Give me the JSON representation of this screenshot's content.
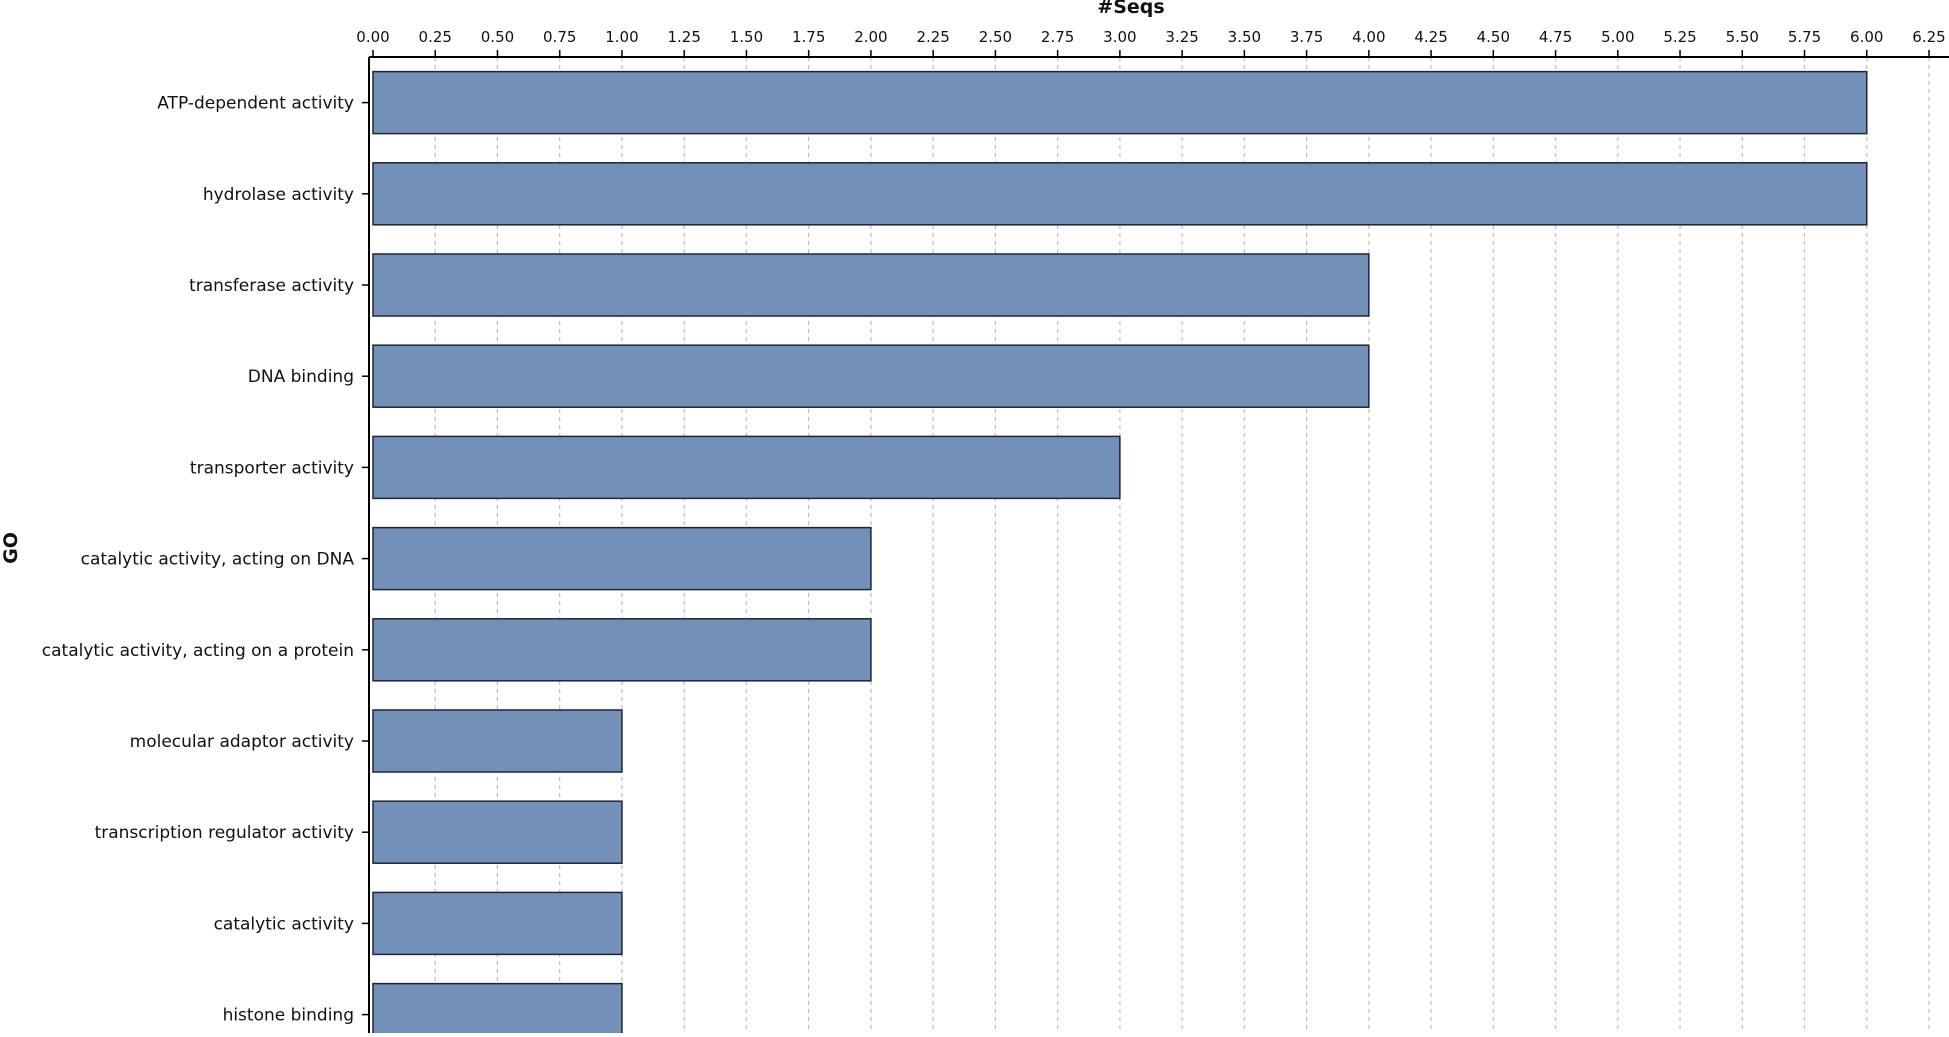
{
  "chart_data": {
    "type": "bar",
    "orientation": "horizontal",
    "xlabel": "#Seqs",
    "ylabel": "GO",
    "xlim": [
      0,
      6.25
    ],
    "x_ticks": [
      "0.00",
      "0.25",
      "0.50",
      "0.75",
      "1.00",
      "1.25",
      "1.50",
      "1.75",
      "2.00",
      "2.25",
      "2.50",
      "2.75",
      "3.00",
      "3.25",
      "3.50",
      "3.75",
      "4.00",
      "4.25",
      "4.50",
      "4.75",
      "5.00",
      "5.25",
      "5.50",
      "5.75",
      "6.00",
      "6.25"
    ],
    "categories": [
      "ATP-dependent activity",
      "hydrolase activity",
      "transferase activity",
      "DNA binding",
      "transporter activity",
      "catalytic activity, acting on DNA",
      "catalytic activity, acting on a protein",
      "molecular adaptor activity",
      "transcription regulator activity",
      "catalytic activity",
      "histone binding"
    ],
    "values": [
      6,
      6,
      4,
      4,
      3,
      2,
      2,
      1,
      1,
      1,
      1
    ],
    "bar_color": "#7390b8",
    "grid": "vertical-dashed",
    "axis_position": "top"
  }
}
